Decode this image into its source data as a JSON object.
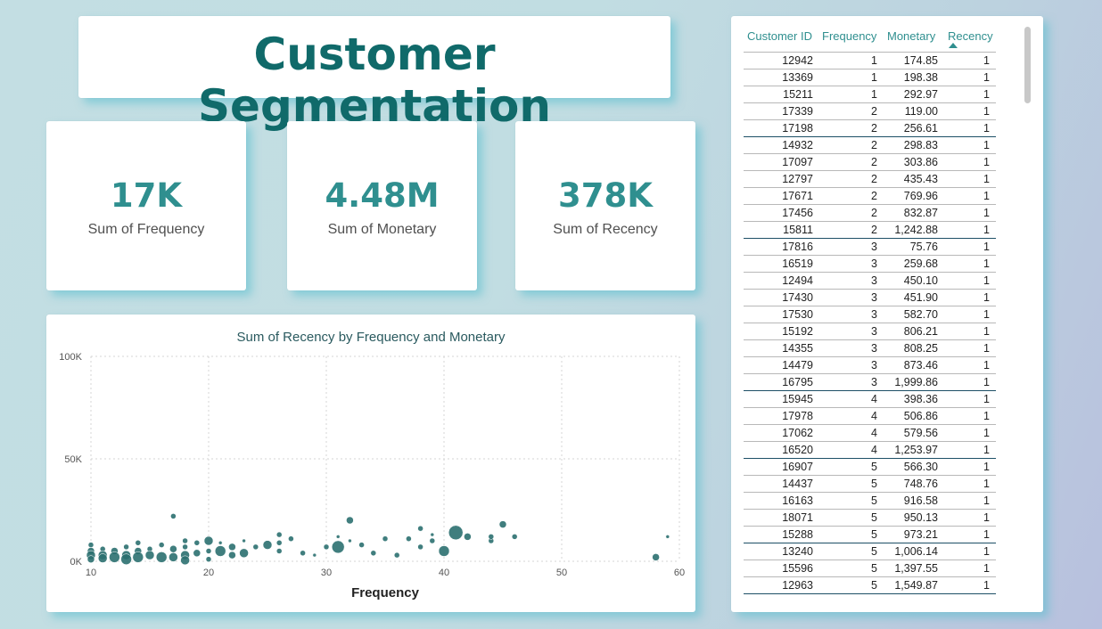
{
  "title": "Customer Segmentation",
  "kpis": [
    {
      "value": "17K",
      "label": "Sum of Frequency"
    },
    {
      "value": "4.48M",
      "label": "Sum of Monetary"
    },
    {
      "value": "378K",
      "label": "Sum of Recency"
    }
  ],
  "colors": {
    "accent": "#2f8f8f",
    "title": "#106a6a",
    "bubble": "#2b7070"
  },
  "table": {
    "columns": [
      "Customer ID",
      "Frequency",
      "Monetary",
      "Recency"
    ],
    "sort_column": "Recency",
    "rows": [
      [
        "12942",
        "1",
        "174.85",
        "1"
      ],
      [
        "13369",
        "1",
        "198.38",
        "1"
      ],
      [
        "15211",
        "1",
        "292.97",
        "1"
      ],
      [
        "17339",
        "2",
        "119.00",
        "1"
      ],
      [
        "17198",
        "2",
        "256.61",
        "1"
      ],
      [
        "14932",
        "2",
        "298.83",
        "1"
      ],
      [
        "17097",
        "2",
        "303.86",
        "1"
      ],
      [
        "12797",
        "2",
        "435.43",
        "1"
      ],
      [
        "17671",
        "2",
        "769.96",
        "1"
      ],
      [
        "17456",
        "2",
        "832.87",
        "1"
      ],
      [
        "15811",
        "2",
        "1,242.88",
        "1"
      ],
      [
        "17816",
        "3",
        "75.76",
        "1"
      ],
      [
        "16519",
        "3",
        "259.68",
        "1"
      ],
      [
        "12494",
        "3",
        "450.10",
        "1"
      ],
      [
        "17430",
        "3",
        "451.90",
        "1"
      ],
      [
        "17530",
        "3",
        "582.70",
        "1"
      ],
      [
        "15192",
        "3",
        "806.21",
        "1"
      ],
      [
        "14355",
        "3",
        "808.25",
        "1"
      ],
      [
        "14479",
        "3",
        "873.46",
        "1"
      ],
      [
        "16795",
        "3",
        "1,999.86",
        "1"
      ],
      [
        "15945",
        "4",
        "398.36",
        "1"
      ],
      [
        "17978",
        "4",
        "506.86",
        "1"
      ],
      [
        "17062",
        "4",
        "579.56",
        "1"
      ],
      [
        "16520",
        "4",
        "1,253.97",
        "1"
      ],
      [
        "16907",
        "5",
        "566.30",
        "1"
      ],
      [
        "14437",
        "5",
        "748.76",
        "1"
      ],
      [
        "16163",
        "5",
        "916.58",
        "1"
      ],
      [
        "18071",
        "5",
        "950.13",
        "1"
      ],
      [
        "15288",
        "5",
        "973.21",
        "1"
      ],
      [
        "13240",
        "5",
        "1,006.14",
        "1"
      ],
      [
        "15596",
        "5",
        "1,397.55",
        "1"
      ],
      [
        "12963",
        "5",
        "1,549.87",
        "1"
      ]
    ]
  },
  "chart_data": {
    "type": "scatter",
    "title": "Sum of Recency by Frequency and Monetary",
    "xlabel": "Frequency",
    "ylabel": "",
    "xlim": [
      10,
      60
    ],
    "ylim": [
      0,
      100000
    ],
    "x_ticks": [
      "10",
      "20",
      "30",
      "40",
      "50",
      "60"
    ],
    "y_ticks": [
      "0K",
      "50K",
      "100K"
    ],
    "grid": true,
    "points": [
      {
        "x": 10,
        "y": 8000,
        "s": 3
      },
      {
        "x": 10,
        "y": 5000,
        "s": 4
      },
      {
        "x": 10,
        "y": 3000,
        "s": 5
      },
      {
        "x": 10,
        "y": 1000,
        "s": 4
      },
      {
        "x": 11,
        "y": 6000,
        "s": 3
      },
      {
        "x": 11,
        "y": 3000,
        "s": 5
      },
      {
        "x": 11,
        "y": 1500,
        "s": 5
      },
      {
        "x": 12,
        "y": 5000,
        "s": 4
      },
      {
        "x": 12,
        "y": 2000,
        "s": 6
      },
      {
        "x": 13,
        "y": 7000,
        "s": 3
      },
      {
        "x": 13,
        "y": 3000,
        "s": 5
      },
      {
        "x": 13,
        "y": 1000,
        "s": 6
      },
      {
        "x": 14,
        "y": 9000,
        "s": 3
      },
      {
        "x": 14,
        "y": 5000,
        "s": 4
      },
      {
        "x": 14,
        "y": 2000,
        "s": 6
      },
      {
        "x": 15,
        "y": 6000,
        "s": 3
      },
      {
        "x": 15,
        "y": 3000,
        "s": 5
      },
      {
        "x": 16,
        "y": 8000,
        "s": 3
      },
      {
        "x": 16,
        "y": 2000,
        "s": 6
      },
      {
        "x": 17,
        "y": 22000,
        "s": 3
      },
      {
        "x": 17,
        "y": 6000,
        "s": 4
      },
      {
        "x": 17,
        "y": 2000,
        "s": 5
      },
      {
        "x": 18,
        "y": 10000,
        "s": 3
      },
      {
        "x": 18,
        "y": 7000,
        "s": 3
      },
      {
        "x": 18,
        "y": 3000,
        "s": 5
      },
      {
        "x": 18,
        "y": 500,
        "s": 5
      },
      {
        "x": 19,
        "y": 9000,
        "s": 3
      },
      {
        "x": 19,
        "y": 4000,
        "s": 4
      },
      {
        "x": 20,
        "y": 10000,
        "s": 5
      },
      {
        "x": 20,
        "y": 5000,
        "s": 3
      },
      {
        "x": 20,
        "y": 1000,
        "s": 3
      },
      {
        "x": 21,
        "y": 9000,
        "s": 2
      },
      {
        "x": 21,
        "y": 5000,
        "s": 6
      },
      {
        "x": 22,
        "y": 7000,
        "s": 4
      },
      {
        "x": 22,
        "y": 3000,
        "s": 4
      },
      {
        "x": 23,
        "y": 10000,
        "s": 2
      },
      {
        "x": 23,
        "y": 4000,
        "s": 5
      },
      {
        "x": 24,
        "y": 7000,
        "s": 3
      },
      {
        "x": 25,
        "y": 8000,
        "s": 5
      },
      {
        "x": 26,
        "y": 13000,
        "s": 3
      },
      {
        "x": 26,
        "y": 9000,
        "s": 3
      },
      {
        "x": 26,
        "y": 5000,
        "s": 3
      },
      {
        "x": 27,
        "y": 11000,
        "s": 3
      },
      {
        "x": 28,
        "y": 4000,
        "s": 3
      },
      {
        "x": 29,
        "y": 3000,
        "s": 2
      },
      {
        "x": 30,
        "y": 7000,
        "s": 3
      },
      {
        "x": 31,
        "y": 7000,
        "s": 7
      },
      {
        "x": 31,
        "y": 12000,
        "s": 2
      },
      {
        "x": 32,
        "y": 20000,
        "s": 4
      },
      {
        "x": 32,
        "y": 10000,
        "s": 2
      },
      {
        "x": 33,
        "y": 8000,
        "s": 3
      },
      {
        "x": 34,
        "y": 4000,
        "s": 3
      },
      {
        "x": 35,
        "y": 11000,
        "s": 3
      },
      {
        "x": 36,
        "y": 3000,
        "s": 3
      },
      {
        "x": 37,
        "y": 11000,
        "s": 3
      },
      {
        "x": 38,
        "y": 16000,
        "s": 3
      },
      {
        "x": 38,
        "y": 7000,
        "s": 3
      },
      {
        "x": 39,
        "y": 10000,
        "s": 3
      },
      {
        "x": 39,
        "y": 13000,
        "s": 2
      },
      {
        "x": 40,
        "y": 5000,
        "s": 6
      },
      {
        "x": 41,
        "y": 14000,
        "s": 8
      },
      {
        "x": 42,
        "y": 12000,
        "s": 4
      },
      {
        "x": 44,
        "y": 10000,
        "s": 3
      },
      {
        "x": 44,
        "y": 12000,
        "s": 3
      },
      {
        "x": 45,
        "y": 18000,
        "s": 4
      },
      {
        "x": 46,
        "y": 12000,
        "s": 3
      },
      {
        "x": 58,
        "y": 2000,
        "s": 4
      },
      {
        "x": 59,
        "y": 12000,
        "s": 2
      }
    ]
  }
}
